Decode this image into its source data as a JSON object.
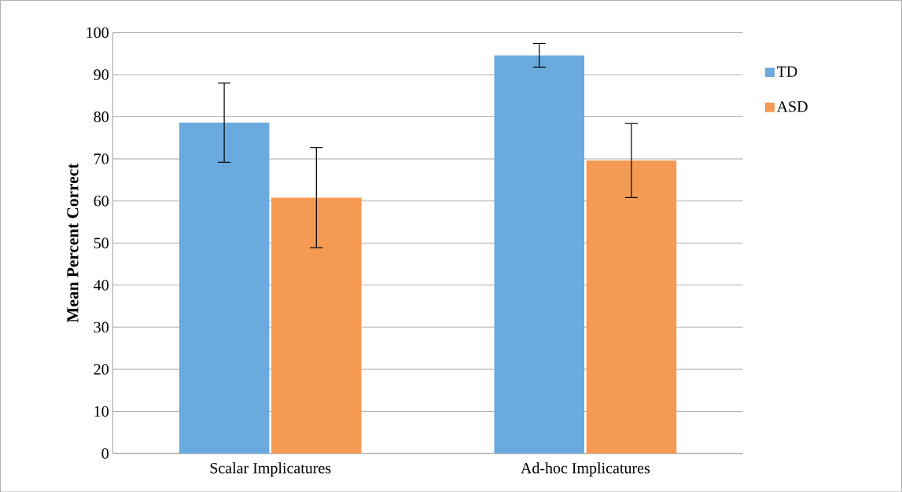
{
  "chart_data": {
    "type": "bar",
    "ylabel": "Mean Percent Correct",
    "categories": [
      "Scalar Implicatures",
      "Ad-hoc Implicatures"
    ],
    "series": [
      {
        "name": "TD",
        "color": "#6aaade",
        "values": [
          78.6,
          94.6
        ],
        "errors": [
          9.4,
          2.8
        ]
      },
      {
        "name": "ASD",
        "color": "#f59a52",
        "values": [
          60.8,
          69.6
        ],
        "errors": [
          11.9,
          8.8
        ]
      }
    ],
    "ylim": [
      0,
      100
    ],
    "yticks": [
      0,
      10,
      20,
      30,
      40,
      50,
      60,
      70,
      80,
      90,
      100
    ],
    "grid": "y",
    "legend": "right"
  }
}
